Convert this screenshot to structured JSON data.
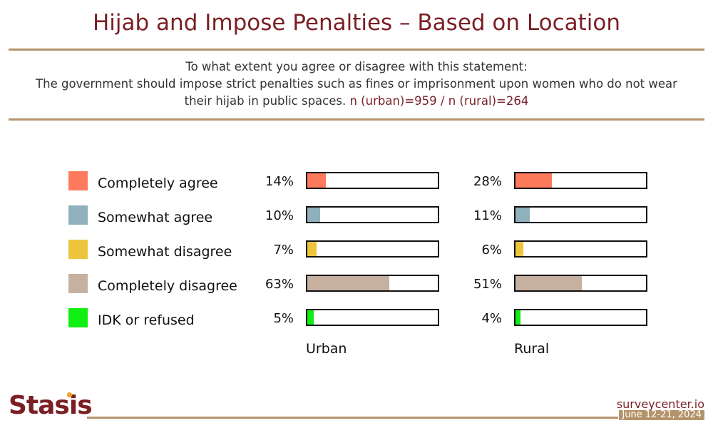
{
  "header": {
    "title": "Hijab and Impose Penalties – Based on Location",
    "question_line1": "To what extent you agree or disagree with this statement:",
    "question_line2": "The government should impose strict penalties such as fines or imprisonment upon women who do not wear",
    "question_line3": "their hijab in public spaces.",
    "sample": "n (urban)=959 / n (rural)=264"
  },
  "chart_data": {
    "type": "bar",
    "categories": [
      "Completely agree",
      "Somewhat agree",
      "Somewhat disagree",
      "Completely disagree",
      "IDK or refused"
    ],
    "colors": [
      "#fd7b5c",
      "#8fb1bb",
      "#edc53c",
      "#c6b0a0",
      "#11ee11"
    ],
    "series": [
      {
        "name": "Urban",
        "values": [
          14,
          10,
          7,
          63,
          5
        ]
      },
      {
        "name": "Rural",
        "values": [
          28,
          11,
          6,
          51,
          4
        ]
      }
    ],
    "value_suffix": "%",
    "xlim": [
      0,
      100
    ],
    "legend_position": "left"
  },
  "footer": {
    "logo": "Stasis",
    "site": "surveycenter.io",
    "date": "June 12-21, 2024"
  }
}
